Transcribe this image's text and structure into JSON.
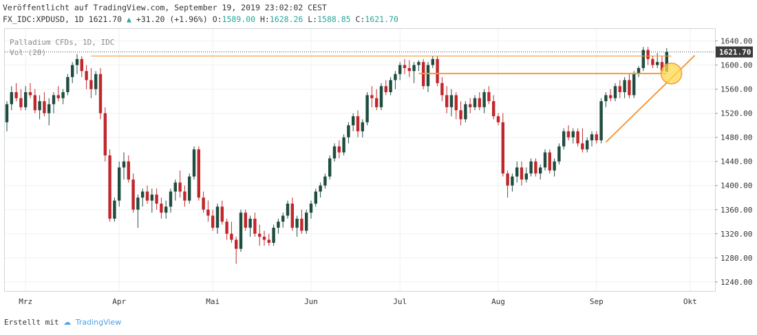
{
  "header": {
    "published": "Veröffentlicht auf TradingView.com, September 19, 2019 23:02:02 CEST",
    "symbol": "FX_IDC:XPDUSD, 1D",
    "last": "1621.70",
    "change": "+31.20 (+1.96%)",
    "o_label": "O:",
    "o": "1589.00",
    "h_label": "H:",
    "h": "1628.26",
    "l_label": "L:",
    "l": "1588.85",
    "c_label": "C:",
    "c": "1621.70"
  },
  "legend": {
    "title": "Palladium CFDs, 1D, IDC",
    "volume": "Vol (20)"
  },
  "footer": {
    "created_with": "Erstellt mit",
    "brand": "TradingView"
  },
  "colors": {
    "up": "#1e4d40",
    "down": "#c0272d",
    "trendline": "#f39a3c",
    "price_tag": "#3a3a3a",
    "circle_fill": "#ffd84d",
    "grid": "#eef0f3"
  },
  "chart_data": {
    "type": "candlestick",
    "title": "Palladium CFDs, 1D, IDC",
    "ylim": [
      1225,
      1660
    ],
    "y_ticks": [
      "1640.00",
      "1600.00",
      "1560.00",
      "1520.00",
      "1480.00",
      "1440.00",
      "1400.00",
      "1360.00",
      "1320.00",
      "1280.00",
      "1240.00"
    ],
    "last_price": "1621.70",
    "x_ticks": [
      {
        "label": "Mrz",
        "index": 4
      },
      {
        "label": "Apr",
        "index": 24
      },
      {
        "label": "Mai",
        "index": 44
      },
      {
        "label": "Jun",
        "index": 65
      },
      {
        "label": "Jul",
        "index": 84
      },
      {
        "label": "Aug",
        "index": 105
      },
      {
        "label": "Sep",
        "index": 126
      },
      {
        "label": "Okt",
        "index": 146
      }
    ],
    "candles": [
      [
        1505,
        1540,
        1490,
        1535
      ],
      [
        1535,
        1565,
        1525,
        1555
      ],
      [
        1555,
        1570,
        1540,
        1545
      ],
      [
        1545,
        1560,
        1525,
        1530
      ],
      [
        1530,
        1565,
        1525,
        1555
      ],
      [
        1555,
        1570,
        1545,
        1550
      ],
      [
        1550,
        1560,
        1520,
        1525
      ],
      [
        1525,
        1550,
        1510,
        1540
      ],
      [
        1540,
        1555,
        1515,
        1520
      ],
      [
        1520,
        1545,
        1500,
        1535
      ],
      [
        1535,
        1555,
        1520,
        1550
      ],
      [
        1550,
        1565,
        1540,
        1545
      ],
      [
        1545,
        1560,
        1535,
        1555
      ],
      [
        1555,
        1585,
        1550,
        1580
      ],
      [
        1580,
        1605,
        1570,
        1600
      ],
      [
        1600,
        1618,
        1585,
        1610
      ],
      [
        1610,
        1615,
        1580,
        1590
      ],
      [
        1590,
        1600,
        1560,
        1575
      ],
      [
        1575,
        1595,
        1545,
        1560
      ],
      [
        1560,
        1590,
        1550,
        1585
      ],
      [
        1585,
        1595,
        1510,
        1520
      ],
      [
        1520,
        1530,
        1440,
        1450
      ],
      [
        1450,
        1460,
        1340,
        1345
      ],
      [
        1345,
        1380,
        1340,
        1375
      ],
      [
        1375,
        1440,
        1365,
        1430
      ],
      [
        1430,
        1455,
        1410,
        1440
      ],
      [
        1440,
        1450,
        1405,
        1410
      ],
      [
        1410,
        1420,
        1355,
        1360
      ],
      [
        1360,
        1385,
        1330,
        1380
      ],
      [
        1380,
        1395,
        1365,
        1390
      ],
      [
        1390,
        1400,
        1370,
        1375
      ],
      [
        1375,
        1395,
        1355,
        1385
      ],
      [
        1385,
        1395,
        1360,
        1370
      ],
      [
        1370,
        1380,
        1345,
        1355
      ],
      [
        1355,
        1375,
        1345,
        1365
      ],
      [
        1365,
        1395,
        1355,
        1390
      ],
      [
        1390,
        1410,
        1375,
        1405
      ],
      [
        1405,
        1425,
        1380,
        1390
      ],
      [
        1390,
        1400,
        1365,
        1375
      ],
      [
        1375,
        1420,
        1370,
        1415
      ],
      [
        1415,
        1465,
        1410,
        1460
      ],
      [
        1460,
        1465,
        1375,
        1380
      ],
      [
        1380,
        1390,
        1355,
        1360
      ],
      [
        1360,
        1375,
        1340,
        1350
      ],
      [
        1350,
        1360,
        1325,
        1330
      ],
      [
        1330,
        1370,
        1320,
        1365
      ],
      [
        1365,
        1375,
        1335,
        1340
      ],
      [
        1340,
        1345,
        1310,
        1320
      ],
      [
        1320,
        1340,
        1305,
        1310
      ],
      [
        1310,
        1315,
        1270,
        1295
      ],
      [
        1295,
        1360,
        1290,
        1355
      ],
      [
        1355,
        1360,
        1325,
        1330
      ],
      [
        1330,
        1350,
        1315,
        1345
      ],
      [
        1345,
        1355,
        1315,
        1320
      ],
      [
        1320,
        1335,
        1300,
        1315
      ],
      [
        1315,
        1325,
        1300,
        1310
      ],
      [
        1310,
        1320,
        1300,
        1305
      ],
      [
        1305,
        1335,
        1300,
        1330
      ],
      [
        1330,
        1345,
        1320,
        1340
      ],
      [
        1340,
        1355,
        1330,
        1350
      ],
      [
        1350,
        1375,
        1345,
        1370
      ],
      [
        1370,
        1380,
        1325,
        1330
      ],
      [
        1330,
        1350,
        1315,
        1345
      ],
      [
        1345,
        1360,
        1320,
        1325
      ],
      [
        1325,
        1360,
        1320,
        1355
      ],
      [
        1355,
        1375,
        1345,
        1370
      ],
      [
        1370,
        1395,
        1365,
        1390
      ],
      [
        1390,
        1405,
        1380,
        1400
      ],
      [
        1400,
        1420,
        1395,
        1415
      ],
      [
        1415,
        1450,
        1410,
        1445
      ],
      [
        1445,
        1470,
        1440,
        1465
      ],
      [
        1465,
        1475,
        1445,
        1455
      ],
      [
        1455,
        1485,
        1450,
        1480
      ],
      [
        1480,
        1505,
        1470,
        1500
      ],
      [
        1500,
        1520,
        1490,
        1515
      ],
      [
        1515,
        1525,
        1480,
        1490
      ],
      [
        1490,
        1510,
        1480,
        1505
      ],
      [
        1505,
        1555,
        1500,
        1550
      ],
      [
        1550,
        1565,
        1530,
        1545
      ],
      [
        1545,
        1560,
        1525,
        1530
      ],
      [
        1530,
        1570,
        1525,
        1565
      ],
      [
        1565,
        1575,
        1550,
        1555
      ],
      [
        1555,
        1580,
        1550,
        1575
      ],
      [
        1575,
        1590,
        1560,
        1585
      ],
      [
        1585,
        1605,
        1575,
        1600
      ],
      [
        1600,
        1610,
        1585,
        1595
      ],
      [
        1595,
        1608,
        1580,
        1590
      ],
      [
        1590,
        1605,
        1570,
        1600
      ],
      [
        1600,
        1608,
        1590,
        1605
      ],
      [
        1605,
        1610,
        1560,
        1565
      ],
      [
        1565,
        1605,
        1555,
        1600
      ],
      [
        1600,
        1615,
        1595,
        1610
      ],
      [
        1610,
        1615,
        1565,
        1570
      ],
      [
        1570,
        1580,
        1540,
        1550
      ],
      [
        1550,
        1565,
        1520,
        1530
      ],
      [
        1530,
        1560,
        1515,
        1550
      ],
      [
        1550,
        1555,
        1510,
        1525
      ],
      [
        1525,
        1540,
        1500,
        1510
      ],
      [
        1510,
        1540,
        1505,
        1535
      ],
      [
        1535,
        1545,
        1520,
        1530
      ],
      [
        1530,
        1550,
        1525,
        1545
      ],
      [
        1545,
        1555,
        1525,
        1530
      ],
      [
        1530,
        1560,
        1520,
        1555
      ],
      [
        1555,
        1565,
        1535,
        1540
      ],
      [
        1540,
        1550,
        1510,
        1515
      ],
      [
        1515,
        1520,
        1500,
        1505
      ],
      [
        1505,
        1520,
        1415,
        1420
      ],
      [
        1420,
        1425,
        1380,
        1400
      ],
      [
        1400,
        1420,
        1390,
        1415
      ],
      [
        1415,
        1440,
        1405,
        1430
      ],
      [
        1430,
        1440,
        1400,
        1410
      ],
      [
        1410,
        1430,
        1405,
        1420
      ],
      [
        1420,
        1445,
        1415,
        1440
      ],
      [
        1440,
        1445,
        1415,
        1420
      ],
      [
        1420,
        1435,
        1410,
        1430
      ],
      [
        1430,
        1460,
        1425,
        1455
      ],
      [
        1455,
        1460,
        1420,
        1425
      ],
      [
        1425,
        1445,
        1415,
        1440
      ],
      [
        1440,
        1470,
        1435,
        1465
      ],
      [
        1465,
        1495,
        1460,
        1490
      ],
      [
        1490,
        1500,
        1475,
        1480
      ],
      [
        1480,
        1495,
        1470,
        1490
      ],
      [
        1490,
        1495,
        1465,
        1470
      ],
      [
        1470,
        1495,
        1455,
        1460
      ],
      [
        1460,
        1480,
        1455,
        1475
      ],
      [
        1475,
        1490,
        1465,
        1485
      ],
      [
        1485,
        1490,
        1470,
        1475
      ],
      [
        1475,
        1545,
        1470,
        1540
      ],
      [
        1540,
        1555,
        1530,
        1550
      ],
      [
        1550,
        1560,
        1540,
        1545
      ],
      [
        1545,
        1570,
        1540,
        1565
      ],
      [
        1565,
        1575,
        1545,
        1555
      ],
      [
        1555,
        1580,
        1545,
        1575
      ],
      [
        1575,
        1585,
        1545,
        1550
      ],
      [
        1550,
        1590,
        1545,
        1585
      ],
      [
        1585,
        1598,
        1580,
        1595
      ],
      [
        1595,
        1630,
        1590,
        1625
      ],
      [
        1625,
        1630,
        1600,
        1610
      ],
      [
        1610,
        1615,
        1595,
        1600
      ],
      [
        1600,
        1620,
        1595,
        1605
      ],
      [
        1605,
        1615,
        1585,
        1590
      ],
      [
        1589,
        1628.26,
        1588.85,
        1621.7
      ]
    ],
    "annotations": {
      "resistance_1": {
        "y": 1615,
        "from_index": 18,
        "to_index": 142
      },
      "resistance_2": {
        "y": 1586,
        "from_index": 88,
        "to_index": 141
      },
      "trendline": {
        "from_index": 128,
        "from_y": 1472,
        "to_index": 147,
        "to_y": 1616
      },
      "highlight": {
        "index": 142,
        "y": 1586
      }
    }
  }
}
